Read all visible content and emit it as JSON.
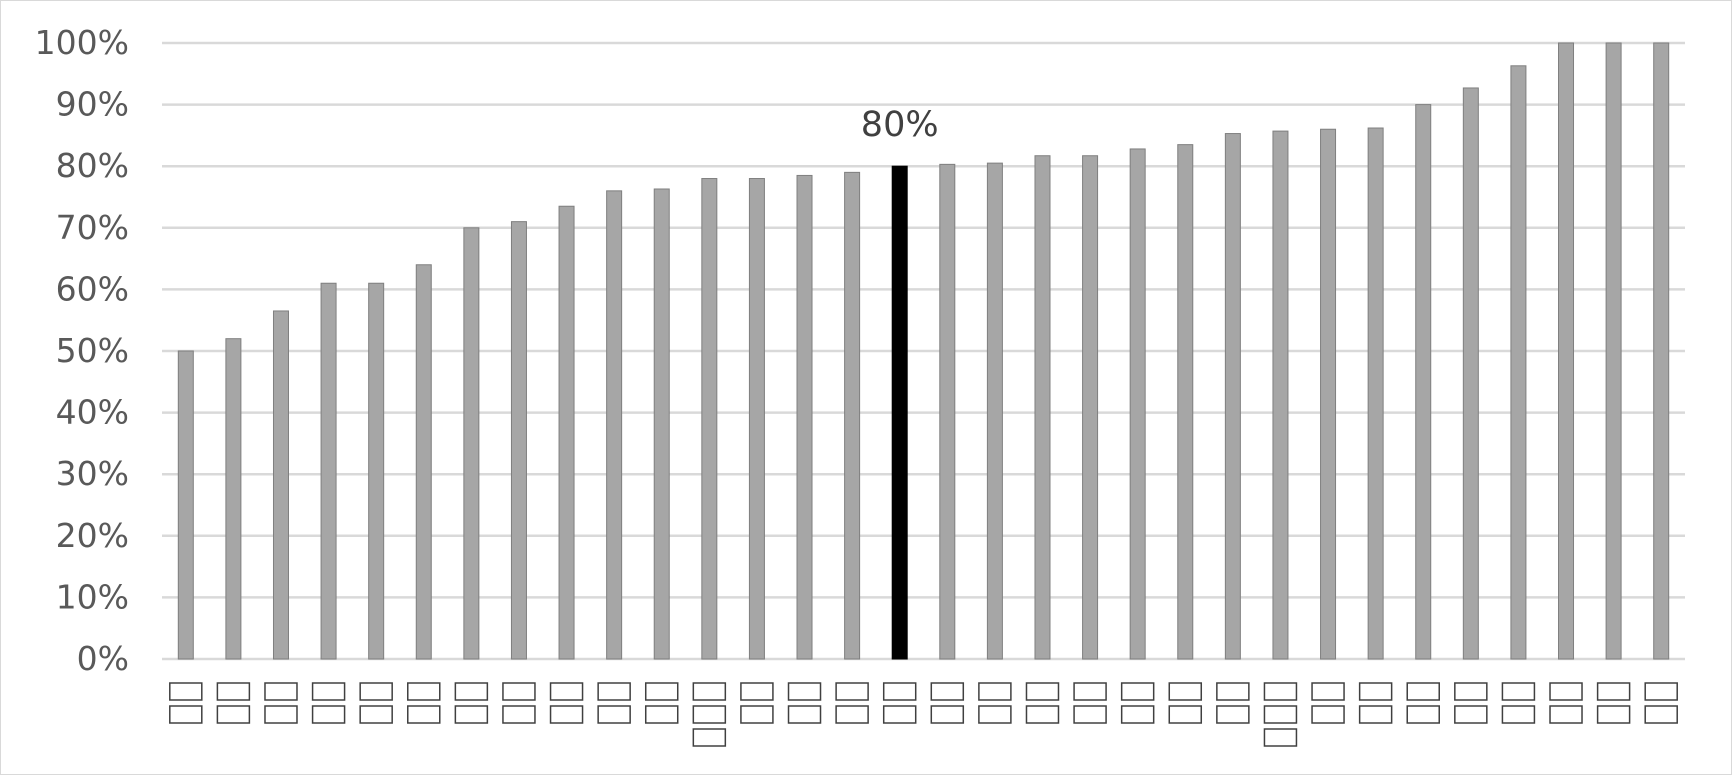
{
  "chart_data": {
    "type": "bar",
    "title": "",
    "xlabel": "",
    "ylabel": "",
    "ylim": [
      0,
      100
    ],
    "y_ticks": [
      "0%",
      "10%",
      "20%",
      "30%",
      "40%",
      "50%",
      "60%",
      "70%",
      "80%",
      "90%",
      "100%"
    ],
    "grid": true,
    "legend": "none",
    "categories": [
      "□□",
      "□□",
      "□□",
      "□□",
      "□□",
      "□□",
      "□□",
      "□□",
      "□□",
      "□□",
      "□□",
      "□□□",
      "□□",
      "□□",
      "□□",
      "□□",
      "□□",
      "□□",
      "□□",
      "□□",
      "□□",
      "□□",
      "□□",
      "□□□",
      "□□",
      "□□",
      "□□",
      "□□",
      "□□",
      "□□",
      "□□",
      "□□"
    ],
    "values": [
      50,
      52,
      56.5,
      61,
      61,
      64,
      70,
      71,
      73.5,
      76,
      76.3,
      78,
      78,
      78.5,
      79,
      80,
      80.3,
      80.5,
      81.7,
      81.7,
      82.8,
      83.5,
      85.3,
      85.7,
      86,
      86.2,
      90,
      92.7,
      96.3,
      100,
      100,
      100
    ],
    "highlight_index": 15,
    "annotation": "80%",
    "colors": {
      "bar": "#a6a6a6",
      "bar_border": "#7f7f7f",
      "highlight": "#000000",
      "grid": "#d9d9d9",
      "tick_text": "#595959",
      "annotation_text": "#404040"
    }
  }
}
